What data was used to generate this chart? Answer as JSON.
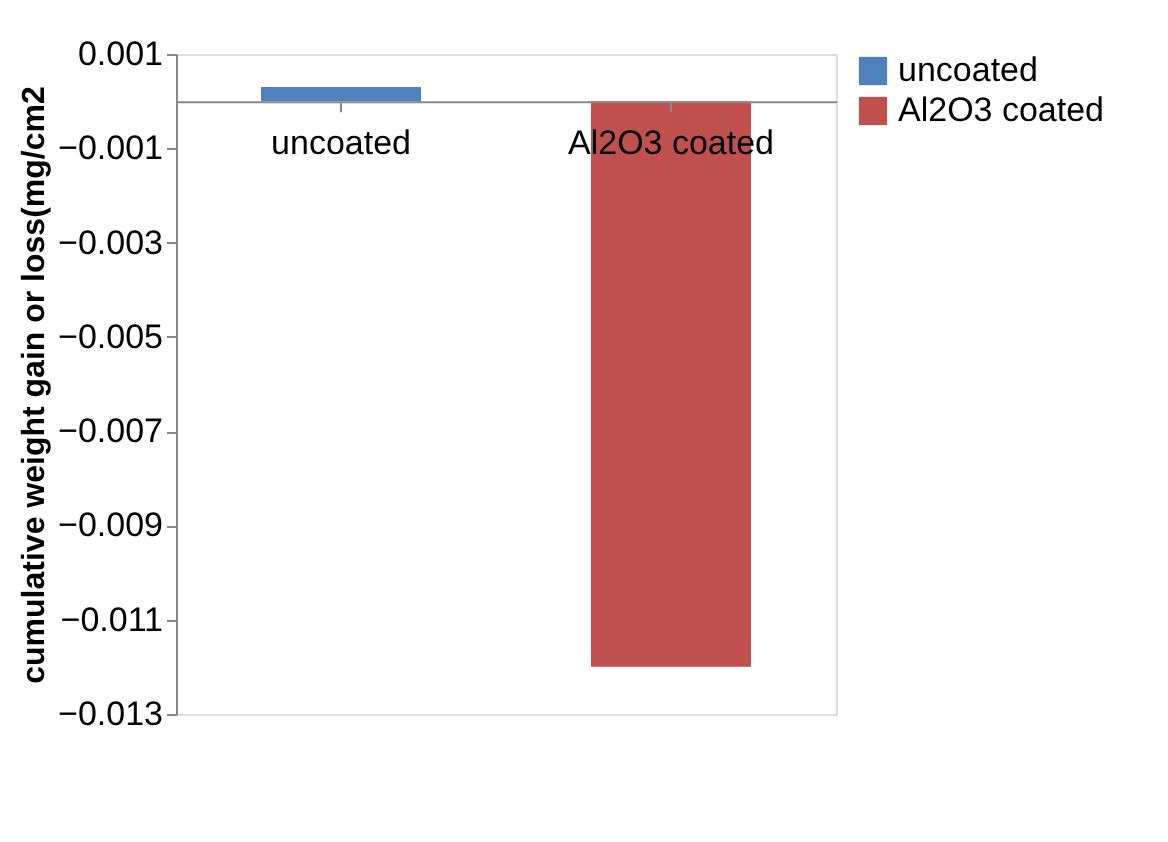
{
  "chart_data": {
    "type": "bar",
    "ylabel": "cumulative weight gain or loss(mg/cm2",
    "categories": [
      "uncoated",
      "Al2O3 coated"
    ],
    "series": [
      {
        "name": "uncoated",
        "color": "#4f81bd",
        "values": [
          0.0003,
          null
        ]
      },
      {
        "name": "Al2O3 coated",
        "color": "#c0504d",
        "values": [
          null,
          -0.012
        ]
      }
    ],
    "ylim": [
      -0.013,
      0.001
    ],
    "yticks": [
      0.001,
      -0.001,
      -0.003,
      -0.005,
      -0.007,
      -0.009,
      -0.011,
      -0.013
    ],
    "grid": false,
    "legend": "right"
  }
}
